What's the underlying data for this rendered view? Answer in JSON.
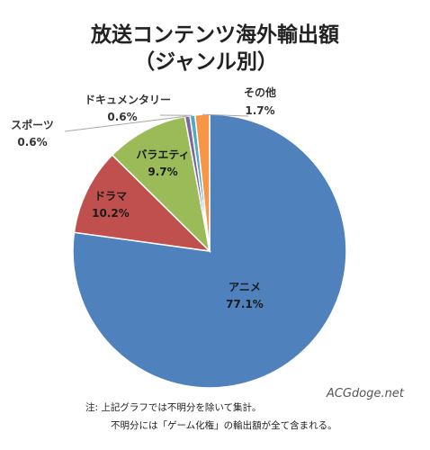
{
  "chart_data": {
    "type": "pie",
    "title": "放送コンテンツ海外輸出額",
    "subtitle": "（ジャンル別）",
    "slices": [
      {
        "label": "アニメ",
        "value": 77.1,
        "value_text": "77.1%",
        "color": "#4f81bd"
      },
      {
        "label": "ドラマ",
        "value": 10.2,
        "value_text": "10.2%",
        "color": "#c0504d"
      },
      {
        "label": "バラエティ",
        "value": 9.7,
        "value_text": "9.7%",
        "color": "#9bbb59"
      },
      {
        "label": "スポーツ",
        "value": 0.6,
        "value_text": "0.6%",
        "color": "#8064a2"
      },
      {
        "label": "ドキュメンタリー",
        "value": 0.6,
        "value_text": "0.6%",
        "color": "#4bacc6"
      },
      {
        "label": "その他",
        "value": 1.7,
        "value_text": "1.7%",
        "color": "#f79646"
      }
    ]
  },
  "notes": [
    "注: 上記グラフでは不明分を除いて集計。",
    "不明分には「ゲーム化権」の輸出額が全て含まれる。"
  ],
  "watermark": "ACGdoge.net"
}
